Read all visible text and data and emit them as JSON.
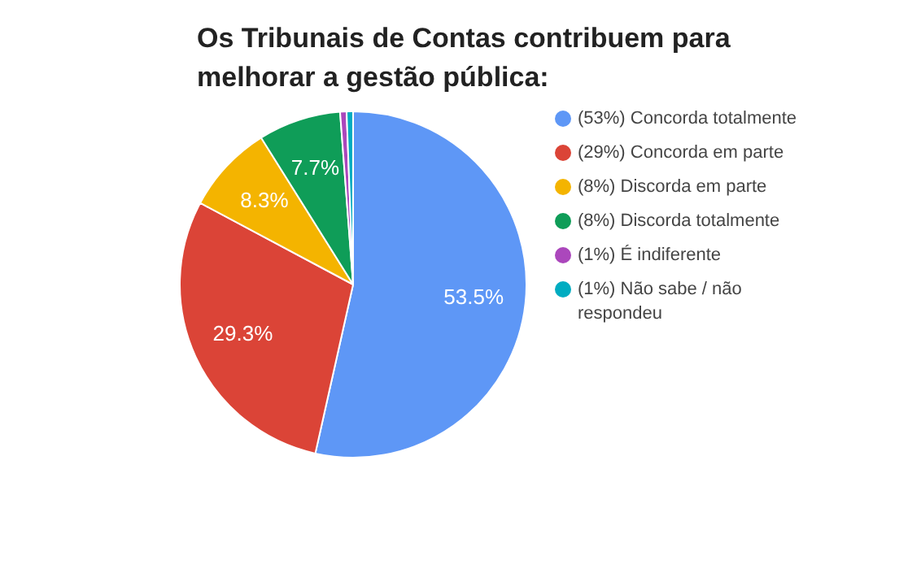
{
  "chart_data": {
    "type": "pie",
    "title": "Os Tribunais de Contas contribuem para melhorar a gestão pública:",
    "categories": [
      "(53%) Concorda totalmente",
      "(29%) Concorda em parte",
      "(8%) Discorda em parte",
      "(8%) Discorda totalmente",
      "(1%) É indiferente",
      "(1%) Não sabe / não respondeu"
    ],
    "values": [
      53.5,
      29.3,
      8.3,
      7.7,
      0.6,
      0.6
    ],
    "colors": [
      "#5e97f6",
      "#db4437",
      "#f4b400",
      "#0f9d58",
      "#ab47bc",
      "#00acc1"
    ],
    "value_labels": [
      "53.5%",
      "29.3%",
      "8.3%",
      "7.7%",
      null,
      null
    ],
    "legend": "right"
  }
}
